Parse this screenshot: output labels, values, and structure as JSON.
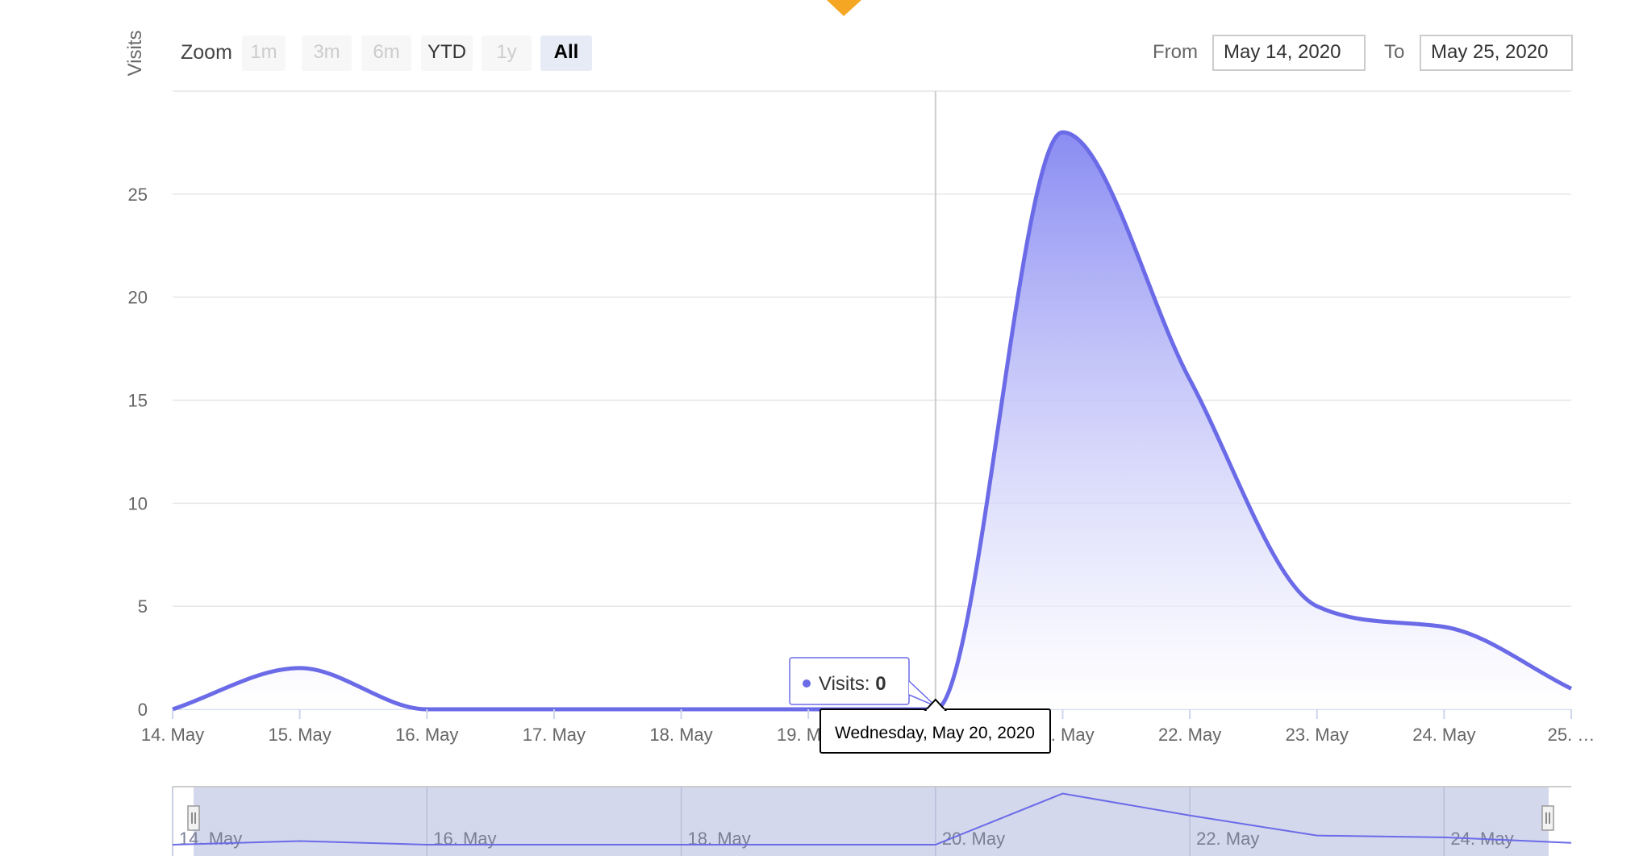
{
  "range_selector": {
    "zoom_label": "Zoom",
    "buttons": [
      {
        "label": "1m",
        "state": "disabled"
      },
      {
        "label": "3m",
        "state": "disabled"
      },
      {
        "label": "6m",
        "state": "disabled"
      },
      {
        "label": "YTD",
        "state": "enabled"
      },
      {
        "label": "1y",
        "state": "disabled"
      },
      {
        "label": "All",
        "state": "selected"
      }
    ],
    "from_label": "From",
    "from_value": "May 14, 2020",
    "to_label": "To",
    "to_value": "May 25, 2020"
  },
  "tooltip": {
    "series_label": "Visits: ",
    "value": "0",
    "date_label": "Wednesday, May 20, 2020"
  },
  "colors": {
    "series": "#6b6be8",
    "area_top": "#8a8cf2",
    "navigator_mask": "#d3d8ec",
    "grid": "#e6e6e6",
    "marker": "#f5a623"
  },
  "chart_data": {
    "type": "area",
    "title": "",
    "ylabel": "Visits",
    "xlabel": "",
    "ylim": [
      0,
      30
    ],
    "yticks": [
      0,
      5,
      10,
      15,
      20,
      25
    ],
    "x": [
      14,
      15,
      16,
      17,
      18,
      19,
      20,
      21,
      22,
      23,
      24,
      25
    ],
    "xticklabels": [
      "14. May",
      "15. May",
      "16. May",
      "17. May",
      "18. May",
      "19. May",
      "20. May",
      "21. May",
      "22. May",
      "23. May",
      "24. May",
      "25. …"
    ],
    "series": [
      {
        "name": "Visits",
        "values": [
          0,
          2,
          0,
          0,
          0,
          0,
          0,
          28,
          16,
          5,
          4,
          1
        ]
      }
    ],
    "crosshair_x": 20,
    "navigator_labels": [
      "14. May",
      "16. May",
      "18. May",
      "20. May",
      "22. May",
      "24. May"
    ],
    "navigator_label_x": [
      14,
      16,
      18,
      20,
      22,
      24
    ],
    "grid": true,
    "legend": "none"
  }
}
